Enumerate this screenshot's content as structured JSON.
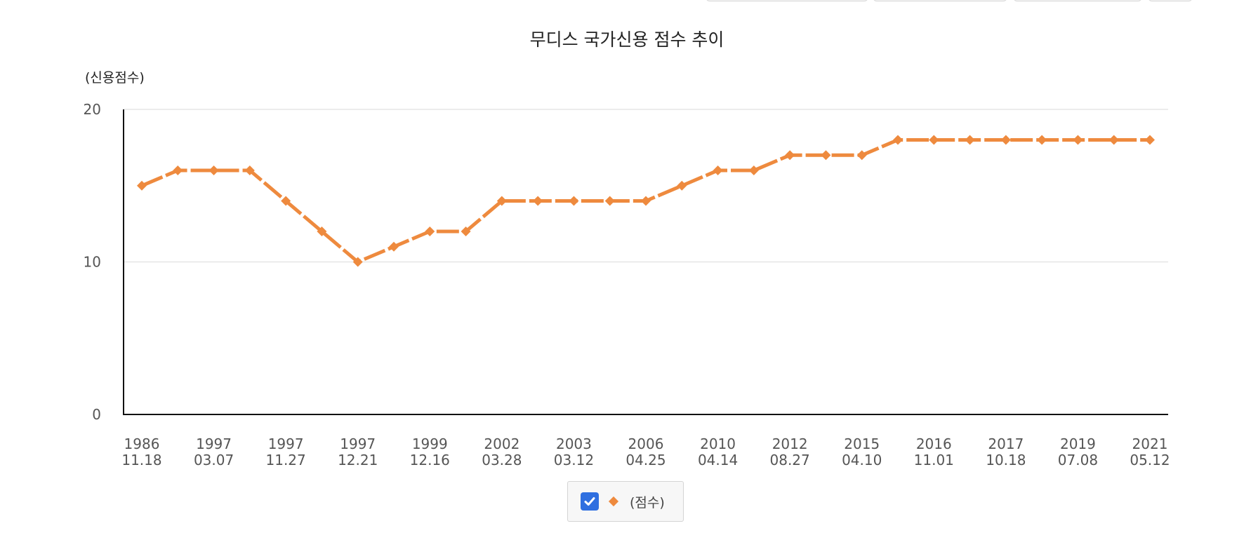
{
  "colors": {
    "series": "#ee8a3e",
    "axis": "#111111",
    "grid": "#e6e6e6",
    "tick_text": "#555555",
    "checkbox": "#2f6fe0"
  },
  "chart_data": {
    "type": "line",
    "title": "무디스 국가신용 점수 추이",
    "ylabel": "(신용점수)",
    "xlabel": "",
    "ylim": [
      0,
      20
    ],
    "y_ticks": [
      0,
      10,
      20
    ],
    "grid": true,
    "legend": {
      "position": "bottom-center",
      "checked": true,
      "label": "(점수)"
    },
    "marker": "diamond",
    "line_style": "dashed",
    "x_tick_labels": [
      [
        "1986",
        "11.18"
      ],
      [
        "1997",
        "03.07"
      ],
      [
        "1997",
        "11.27"
      ],
      [
        "1997",
        "12.21"
      ],
      [
        "1999",
        "12.16"
      ],
      [
        "2002",
        "03.28"
      ],
      [
        "2003",
        "03.12"
      ],
      [
        "2006",
        "04.25"
      ],
      [
        "2010",
        "04.14"
      ],
      [
        "2012",
        "08.27"
      ],
      [
        "2015",
        "04.10"
      ],
      [
        "2016",
        "11.01"
      ],
      [
        "2017",
        "10.18"
      ],
      [
        "2019",
        "07.08"
      ],
      [
        "2021",
        "05.12"
      ]
    ],
    "series": [
      {
        "name": "(점수)",
        "values": [
          15,
          16,
          16,
          16,
          14,
          12,
          10,
          11,
          12,
          12,
          14,
          14,
          14,
          14,
          14,
          15,
          16,
          16,
          17,
          17,
          17,
          18,
          18,
          18,
          18,
          18,
          18,
          18,
          18
        ]
      }
    ]
  }
}
